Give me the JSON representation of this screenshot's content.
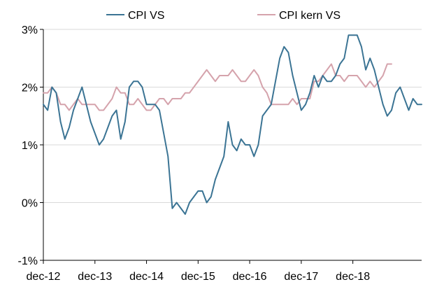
{
  "chart_data": {
    "type": "line",
    "title": "",
    "xlabel": "",
    "ylabel": "",
    "ylim": [
      -1,
      3
    ],
    "y_ticks": [
      -1,
      0,
      1,
      2,
      3
    ],
    "y_tick_labels": [
      "-1%",
      "0%",
      "1%",
      "2%",
      "3%"
    ],
    "x_tick_labels": [
      "dec-12",
      "dec-13",
      "dec-14",
      "dec-15",
      "dec-16",
      "dec-17",
      "dec-18"
    ],
    "x_start": "2012-12",
    "grid": "horizontal",
    "legend_position": "top",
    "series": [
      {
        "name": "CPI VS",
        "color": "#3b7494",
        "values": [
          1.7,
          1.6,
          2.0,
          1.9,
          1.4,
          1.1,
          1.3,
          1.6,
          1.8,
          2.0,
          1.7,
          1.4,
          1.2,
          1.0,
          1.1,
          1.3,
          1.5,
          1.6,
          1.1,
          1.4,
          2.0,
          2.1,
          2.1,
          2.0,
          1.7,
          1.7,
          1.7,
          1.6,
          1.2,
          0.8,
          -0.1,
          0.0,
          -0.1,
          -0.2,
          0.0,
          0.1,
          0.2,
          0.2,
          0.0,
          0.1,
          0.4,
          0.6,
          0.8,
          1.4,
          1.0,
          0.9,
          1.1,
          1.0,
          1.0,
          0.8,
          1.0,
          1.5,
          1.6,
          1.7,
          2.1,
          2.5,
          2.7,
          2.6,
          2.2,
          1.9,
          1.6,
          1.7,
          1.9,
          2.2,
          2.0,
          2.2,
          2.1,
          2.1,
          2.2,
          2.4,
          2.5,
          2.9,
          2.9,
          2.9,
          2.7,
          2.3,
          2.5,
          2.3,
          2.0,
          1.7,
          1.5,
          1.6,
          1.9,
          2.0,
          1.8,
          1.6,
          1.8,
          1.7,
          1.7
        ]
      },
      {
        "name": "CPI kern VS",
        "color": "#d5a3ac",
        "values": [
          1.9,
          1.9,
          2.0,
          1.9,
          1.7,
          1.7,
          1.6,
          1.7,
          1.8,
          1.7,
          1.7,
          1.7,
          1.7,
          1.6,
          1.6,
          1.7,
          1.8,
          2.0,
          1.9,
          1.9,
          1.7,
          1.7,
          1.8,
          1.7,
          1.6,
          1.6,
          1.7,
          1.8,
          1.8,
          1.7,
          1.8,
          1.8,
          1.8,
          1.9,
          1.9,
          2.0,
          2.1,
          2.2,
          2.3,
          2.2,
          2.1,
          2.2,
          2.2,
          2.2,
          2.3,
          2.2,
          2.1,
          2.1,
          2.2,
          2.3,
          2.2,
          2.0,
          1.9,
          1.7,
          1.7,
          1.7,
          1.7,
          1.7,
          1.8,
          1.7,
          1.8,
          1.8,
          1.8,
          2.1,
          2.1,
          2.2,
          2.3,
          2.4,
          2.2,
          2.2,
          2.1,
          2.2,
          2.2,
          2.2,
          2.1,
          2.0,
          2.1,
          2.0,
          2.1,
          2.2,
          2.4,
          2.4
        ]
      }
    ]
  }
}
